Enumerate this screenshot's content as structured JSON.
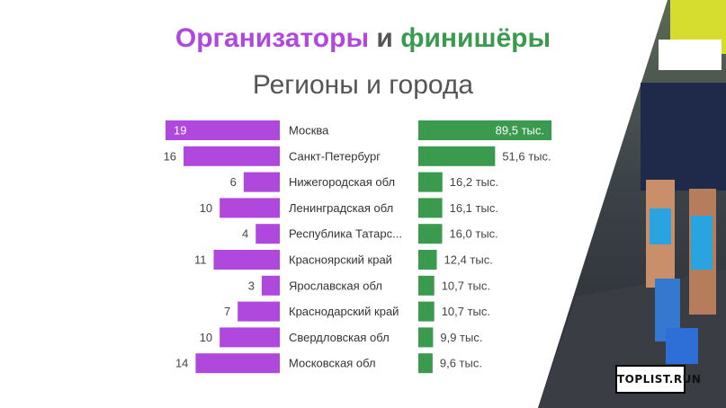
{
  "title": {
    "part1": "Организаторы",
    "part2": "и",
    "part3": "финишёры"
  },
  "subtitle": "Регионы и города",
  "logo_text": "TOPLIST.RUN",
  "colors": {
    "organizers": "#b048de",
    "finishers": "#3a9a4e",
    "photo_bg": "#2f3440"
  },
  "chart_data": {
    "type": "bar",
    "categories": [
      "Москва",
      "Санкт-Петербург",
      "Нижегородская обл",
      "Ленинградская обл",
      "Республика Татарс...",
      "Красноярский край",
      "Ярославская обл",
      "Краснодарский край",
      "Свердловская обл",
      "Московская обл"
    ],
    "series": [
      {
        "values": [
          19,
          16,
          6,
          10,
          4,
          11,
          3,
          7,
          10,
          14
        ],
        "labels": [
          "19",
          "16",
          "6",
          "10",
          "4",
          "11",
          "3",
          "7",
          "10",
          "14"
        ]
      },
      {
        "values": [
          89.5,
          51.6,
          16.2,
          16.1,
          16.0,
          12.4,
          10.7,
          10.7,
          9.9,
          9.6
        ],
        "labels": [
          "89,5 тыс.",
          "51,6 тыс.",
          "16,2 тыс.",
          "16,1 тыс.",
          "16,0 тыс.",
          "12,4 тыс.",
          "10,7 тыс.",
          "10,7 тыс.",
          "9,9 тыс.",
          "9,6 тыс."
        ]
      }
    ],
    "orientation": "horizontal",
    "legend": "none",
    "grid": false
  }
}
